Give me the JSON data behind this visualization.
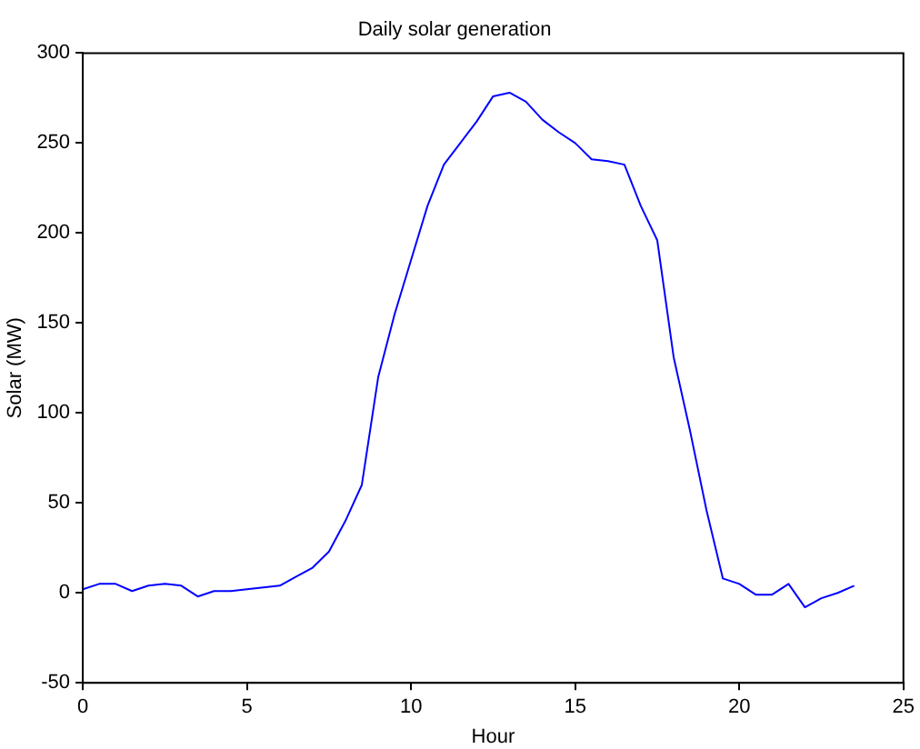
{
  "chart_data": {
    "type": "line",
    "title": "Daily solar generation",
    "xlabel": "Hour",
    "ylabel": "Solar (MW)",
    "x": [
      0,
      0.5,
      1,
      1.5,
      2,
      2.5,
      3,
      3.5,
      4,
      4.5,
      5,
      5.5,
      6,
      6.5,
      7,
      7.5,
      8,
      8.5,
      9,
      9.5,
      10,
      10.5,
      11,
      11.5,
      12,
      12.5,
      13,
      13.5,
      14,
      14.5,
      15,
      15.5,
      16,
      16.5,
      17,
      17.5,
      18,
      18.5,
      19,
      19.5,
      20,
      20.5,
      21,
      21.5,
      22,
      22.5,
      23,
      23.5
    ],
    "series": [
      {
        "color": "#0000ff",
        "values": [
          2,
          5,
          5,
          1,
          4,
          5,
          4,
          -2,
          1,
          1,
          2,
          3,
          4,
          9,
          14,
          23,
          40,
          60,
          120,
          155,
          185,
          215,
          238,
          250,
          262,
          276,
          278,
          273,
          263,
          256,
          250,
          241,
          240,
          238,
          215,
          196,
          131,
          90,
          46,
          8,
          5,
          -1,
          -1,
          5,
          -8,
          -3,
          0,
          4
        ]
      }
    ],
    "xlim": [
      0,
      25
    ],
    "xticks": [
      0,
      5,
      10,
      15,
      20,
      25
    ],
    "ylim": [
      -50,
      300
    ],
    "yticks": [
      -50,
      0,
      50,
      100,
      150,
      200,
      250,
      300
    ],
    "grid": false,
    "legend": false,
    "marker": "none",
    "line_style": "solid"
  }
}
